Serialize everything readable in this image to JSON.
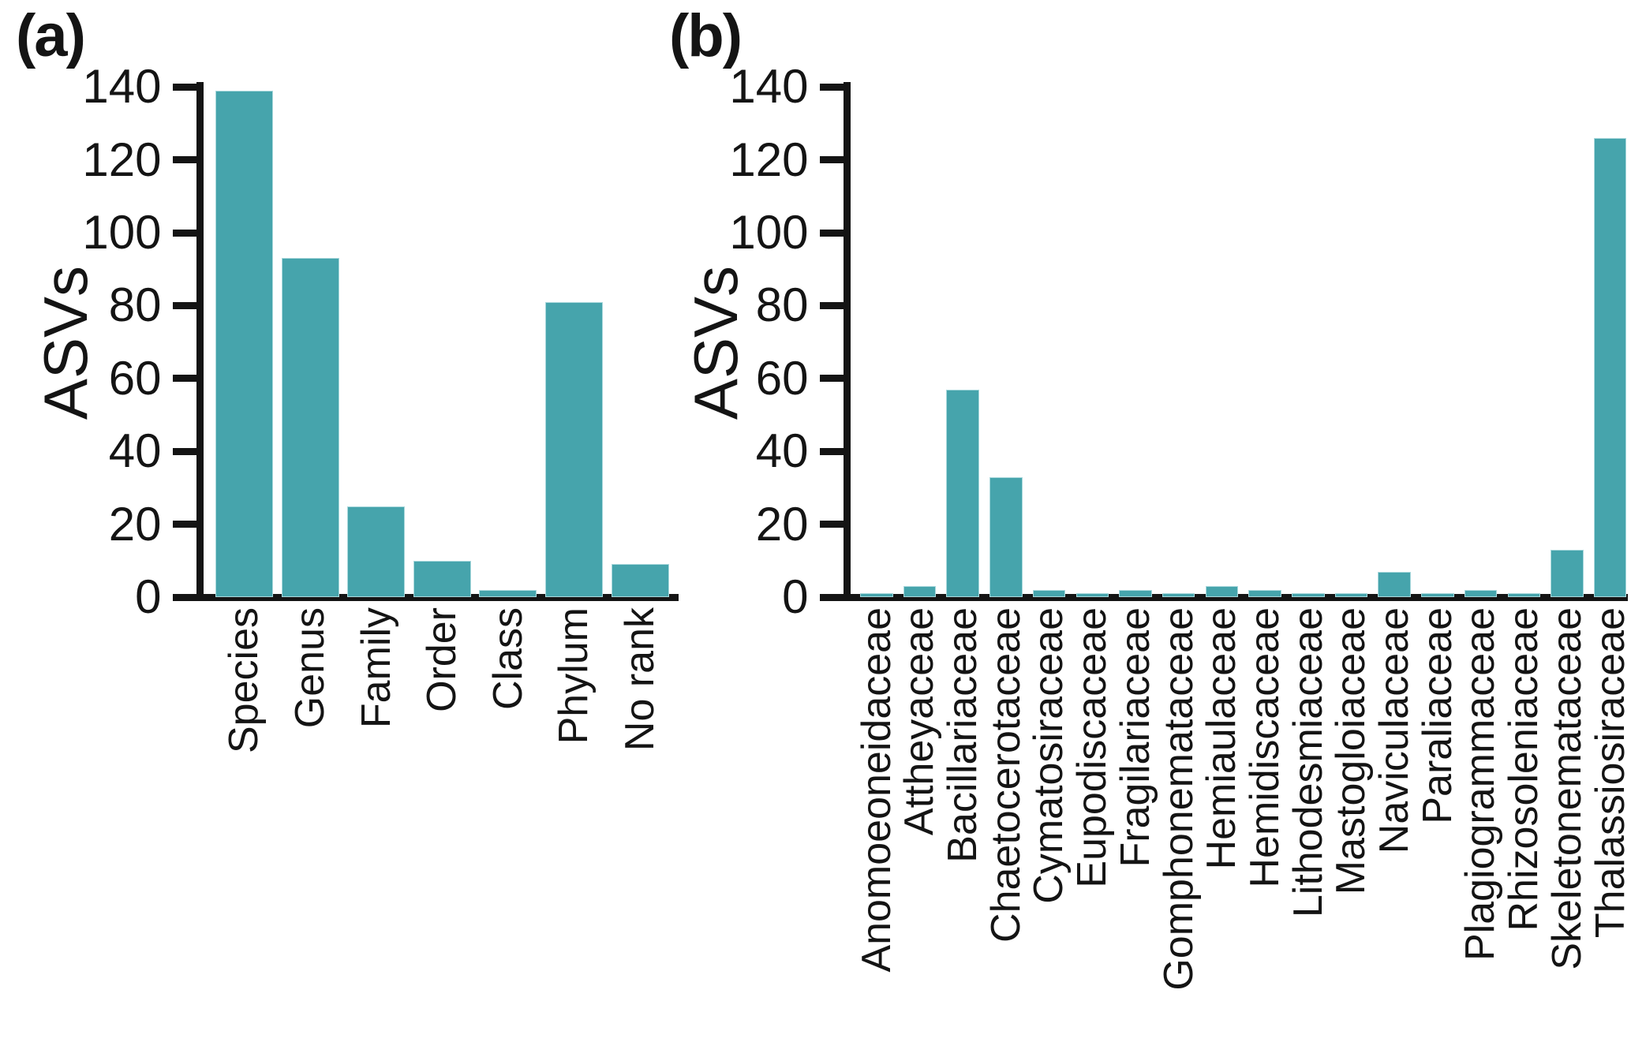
{
  "figure": {
    "background": "#ffffff",
    "bar_color": "#46a4ac",
    "axis_color": "#141414"
  },
  "chart_data": [
    {
      "type": "bar",
      "panel_label": "(a)",
      "title": "",
      "xlabel": "",
      "ylabel": "ASVs",
      "ylim": [
        0,
        140
      ],
      "yticks": [
        0,
        20,
        40,
        60,
        80,
        100,
        120,
        140
      ],
      "grid": false,
      "legend": "none",
      "categories": [
        "Species",
        "Genus",
        "Family",
        "Order",
        "Class",
        "Phylum",
        "No rank"
      ],
      "values": [
        139,
        93,
        25,
        10,
        2,
        81,
        9
      ],
      "bar_color": "#46a4ac"
    },
    {
      "type": "bar",
      "panel_label": "(b)",
      "title": "",
      "xlabel": "",
      "ylabel": "ASVs",
      "ylim": [
        0,
        140
      ],
      "yticks": [
        0,
        20,
        40,
        60,
        80,
        100,
        120,
        140
      ],
      "grid": false,
      "legend": "none",
      "categories": [
        "Anomoeoneidaceae",
        "Attheyaceae",
        "Bacillariaceae",
        "Chaetocerotaceae",
        "Cymatosiraceae",
        "Eupodiscaceae",
        "Fragilariaceae",
        "Gomphonemataceae",
        "Hemiaulaceae",
        "Hemidiscaceae",
        "Lithodesmiaceae",
        "Mastogloiaceae",
        "Naviculaceae",
        "Paraliaceae",
        "Plagiogrammaceae",
        "Rhizosoleniaceae",
        "Skeletonemataceae",
        "Thalassiosiraceae"
      ],
      "values": [
        1,
        3,
        57,
        33,
        2,
        1,
        2,
        1,
        3,
        2,
        1,
        1,
        7,
        1,
        2,
        1,
        13,
        126
      ],
      "bar_color": "#46a4ac"
    }
  ]
}
